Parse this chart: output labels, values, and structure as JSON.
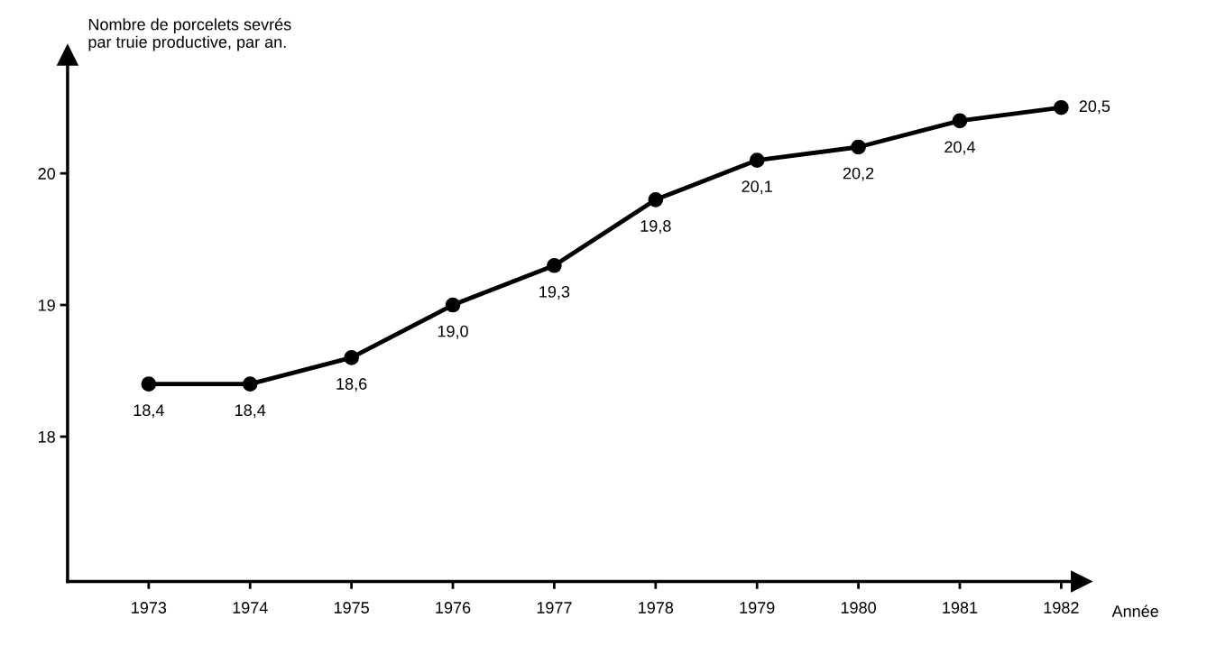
{
  "chart_data": {
    "type": "line",
    "ylabel": "Nombre de porcelets sevrés\npar truie productive, par an.",
    "xlabel": "Année",
    "categories": [
      "1973",
      "1974",
      "1975",
      "1976",
      "1977",
      "1978",
      "1979",
      "1980",
      "1981",
      "1982"
    ],
    "series": [
      {
        "color": "#000000",
        "values": [
          18.4,
          18.4,
          18.6,
          19.0,
          19.3,
          19.8,
          20.1,
          20.2,
          20.4,
          20.5
        ],
        "value_labels": [
          "18,4",
          "18,4",
          "18,6",
          "19,0",
          "19,3",
          "19,8",
          "20,1",
          "20,2",
          "20,4",
          "20,5"
        ]
      }
    ],
    "ylim": [
      16.9,
      20.9
    ],
    "yticks": [
      18,
      19,
      20
    ],
    "marker": "circle",
    "line_style": "solid",
    "grid": false,
    "legend": false
  }
}
